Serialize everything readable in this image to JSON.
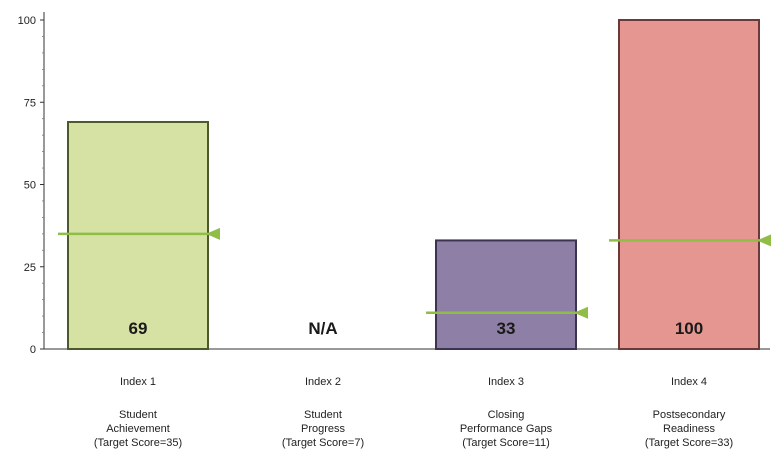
{
  "chart_data": {
    "type": "bar",
    "categories": [
      "Index 1",
      "Index 2",
      "Index 3",
      "Index 4"
    ],
    "descriptions": [
      [
        "Student",
        "Achievement",
        "(Target Score=35)"
      ],
      [
        "Student",
        "Progress",
        "(Target Score=7)"
      ],
      [
        "Closing",
        "Performance Gaps",
        "(Target Score=11)"
      ],
      [
        "Postsecondary",
        "Readiness",
        "(Target Score=33)"
      ]
    ],
    "values": [
      69,
      null,
      33,
      100
    ],
    "value_labels": [
      "69",
      "N/A",
      "33",
      "100"
    ],
    "targets": [
      35,
      7,
      11,
      33
    ],
    "bar_colors": [
      "#d6e2a4",
      "#ffffff",
      "#8e7fa6",
      "#e69690"
    ],
    "bar_borders": [
      "#4b5a2a",
      "#ffffff",
      "#3b3350",
      "#6b3a38"
    ],
    "target_color": "#8fbd46",
    "ylim": [
      0,
      100
    ],
    "yticks": [
      0,
      25,
      50,
      75,
      100
    ],
    "xlabel": "",
    "ylabel": "",
    "title": ""
  }
}
